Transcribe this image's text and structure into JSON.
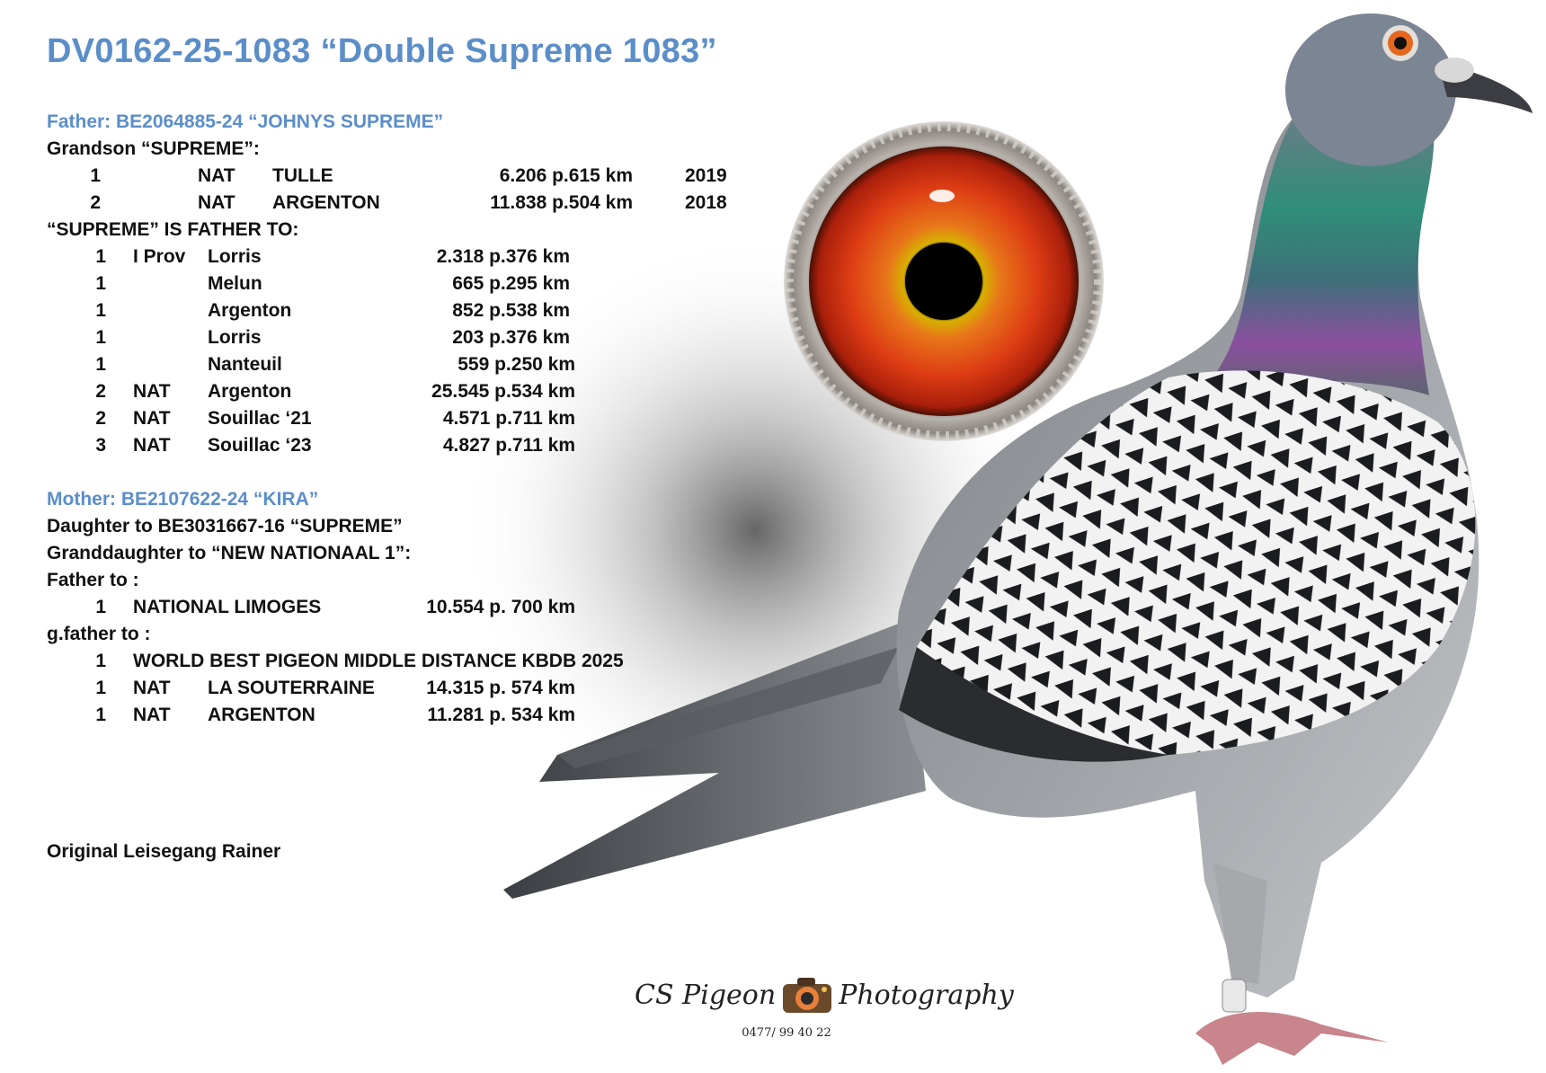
{
  "title": "DV0162-25-1083 “Double Supreme 1083”",
  "father": {
    "heading": "Father: BE2064885-24 “JOHNYS SUPREME”",
    "subline": "Grandson “SUPREME”:",
    "results": [
      {
        "pos": "1",
        "level": "NAT",
        "race": "TULLE",
        "result": "6.206 p.615 km",
        "year": "2019"
      },
      {
        "pos": "2",
        "level": "NAT",
        "race": "ARGENTON",
        "result": "11.838 p.504 km",
        "year": "2018"
      }
    ],
    "supreme_line": "“SUPREME” IS FATHER TO:",
    "children": [
      {
        "pos": "1",
        "level": "I Prov",
        "race": "Lorris",
        "result": "2.318 p.376 km"
      },
      {
        "pos": "1",
        "level": "",
        "race": "Melun",
        "result": "665 p.295 km"
      },
      {
        "pos": "1",
        "level": "",
        "race": "Argenton",
        "result": "852 p.538 km"
      },
      {
        "pos": "1",
        "level": "",
        "race": "Lorris",
        "result": "203 p.376 km"
      },
      {
        "pos": "1",
        "level": "",
        "race": "Nanteuil",
        "result": "559 p.250 km"
      },
      {
        "pos": "2",
        "level": "NAT",
        "race": "Argenton",
        "result": "25.545 p.534 km"
      },
      {
        "pos": "2",
        "level": "NAT",
        "race": "Souillac ‘21",
        "result": "4.571 p.711 km"
      },
      {
        "pos": "3",
        "level": "NAT",
        "race": "Souillac ‘23",
        "result": "4.827 p.711 km"
      }
    ]
  },
  "mother": {
    "heading": "Mother: BE2107622-24 “KIRA”",
    "line1": "Daughter to BE3031667-16 “SUPREME”",
    "line2": "Granddaughter to “NEW NATIONAAL 1”:",
    "father_to_label": "Father to :",
    "father_to": [
      {
        "pos": "1",
        "label": "NATIONAL LIMOGES",
        "result": "10.554 p. 700 km"
      }
    ],
    "gfather_to_label": "g.father to :",
    "gfather_to": [
      {
        "pos": "1",
        "label": "WORLD BEST PIGEON MIDDLE DISTANCE KBDB 2025",
        "level": "",
        "race": "",
        "result": ""
      },
      {
        "pos": "1",
        "label": "",
        "level": "NAT",
        "race": "LA SOUTERRAINE",
        "result": "14.315 p. 574 km"
      },
      {
        "pos": "1",
        "label": "",
        "level": "NAT",
        "race": "ARGENTON",
        "result": "11.281 p. 534 km"
      }
    ]
  },
  "footer_note": "Original Leisegang Rainer",
  "logo": {
    "left": "CS Pigeon",
    "right": "Photography",
    "icon": "camera-icon"
  },
  "phone": "0477/ 99 40 22",
  "colors": {
    "heading": "#5b8ec9",
    "text": "#111111",
    "eye_iris": "#e0461b",
    "neck_green": "#2e8f7a",
    "neck_purple": "#8a4f9e",
    "body_gray": "#8e9196"
  }
}
